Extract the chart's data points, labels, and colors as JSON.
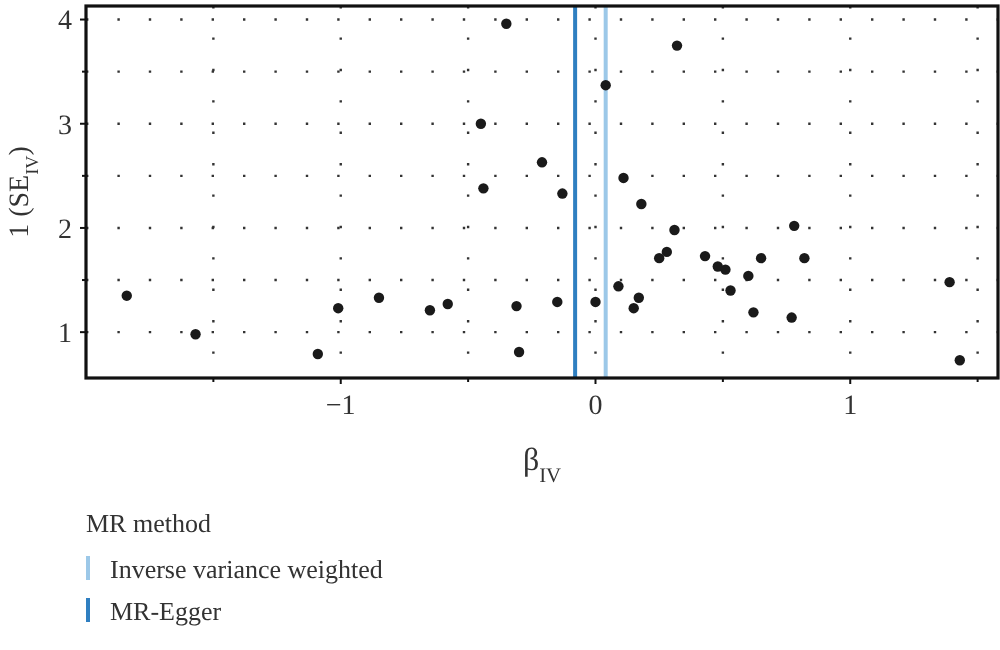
{
  "chart_data": {
    "type": "scatter",
    "xlabel": "β$_{IV}$",
    "ylabel": "1 (SE$_{IV}$)",
    "legend_title": "MR method",
    "legend": "bottom",
    "grid": true,
    "marker": "circle",
    "xlim": [
      -2.0,
      1.58
    ],
    "ylim": [
      0.56,
      4.13
    ],
    "xticks": [
      {
        "value": -1.5,
        "label": null
      },
      -1,
      {
        "value": -0.5,
        "label": null
      },
      0,
      {
        "value": 0.5,
        "label": null
      },
      1,
      {
        "value": 1.5,
        "label": null
      }
    ],
    "yticks": [
      1,
      {
        "value": 1.5,
        "label": null
      },
      2,
      {
        "value": 2.5,
        "label": null
      },
      3,
      {
        "value": 3.5,
        "label": null
      },
      4
    ],
    "series": [
      {
        "color": "#1a1a1a",
        "x": [
          -1.84,
          -1.57,
          -1.09,
          -1.01,
          -0.85,
          -0.65,
          -0.58,
          -0.45,
          -0.44,
          -0.35,
          -0.31,
          -0.3,
          -0.21,
          -0.15,
          -0.13,
          0.0,
          0.04,
          0.09,
          0.11,
          0.15,
          0.17,
          0.18,
          0.25,
          0.28,
          0.31,
          0.32,
          0.43,
          0.48,
          0.51,
          0.53,
          0.6,
          0.62,
          0.65,
          0.77,
          0.78,
          0.82,
          1.39,
          1.43
        ],
        "values": [
          1.35,
          0.98,
          0.79,
          1.23,
          1.33,
          1.21,
          1.27,
          3.0,
          2.38,
          3.96,
          1.25,
          0.81,
          2.63,
          1.29,
          2.33,
          1.29,
          3.37,
          1.44,
          2.48,
          1.23,
          1.33,
          2.23,
          1.71,
          1.77,
          1.98,
          3.75,
          1.73,
          1.63,
          1.6,
          1.4,
          1.54,
          1.19,
          1.71,
          1.14,
          2.02,
          1.71,
          1.48,
          0.73
        ]
      }
    ],
    "ref_lines": [
      {
        "axis": "x",
        "value": 0.04,
        "label": "Inverse variance weighted",
        "color": "#9cc8e8"
      },
      {
        "axis": "x",
        "value": -0.08,
        "label": "MR-Egger",
        "color": "#2f7fc1"
      }
    ]
  }
}
